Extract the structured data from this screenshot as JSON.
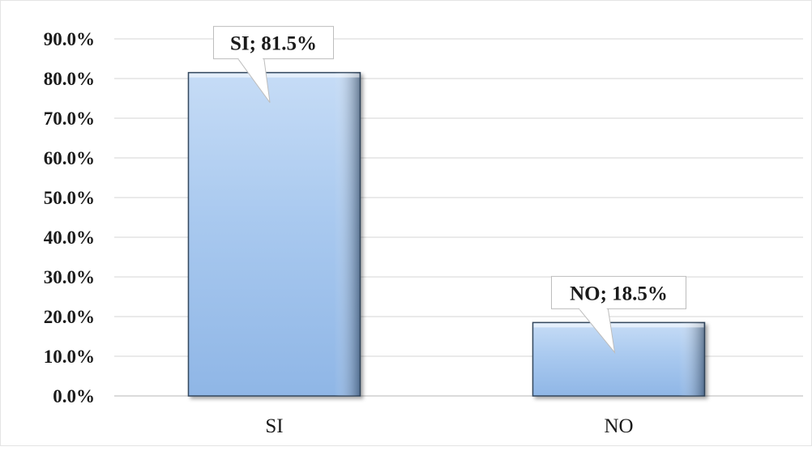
{
  "chart_data": {
    "type": "bar",
    "categories": [
      "SI",
      "NO"
    ],
    "values": [
      81.5,
      18.5
    ],
    "value_unit": "%",
    "ylim": [
      0,
      90
    ],
    "y_tick_step": 10,
    "y_tick_labels": [
      "0.0%",
      "10.0%",
      "20.0%",
      "30.0%",
      "40.0%",
      "50.0%",
      "60.0%",
      "70.0%",
      "80.0%",
      "90.0%"
    ],
    "data_labels": [
      "SI; 81.5%",
      "NO; 18.5%"
    ],
    "title": "",
    "xlabel": "",
    "ylabel": "",
    "grid": "horizontal",
    "legend": "none"
  },
  "colors": {
    "bar_light": "#c6dcf6",
    "bar_mid": "#a9c9ef",
    "bar_dark": "#8fb6e6",
    "bar_edge": "#34495e",
    "grid": "#e3e3e3",
    "text": "#1a1a1a"
  }
}
